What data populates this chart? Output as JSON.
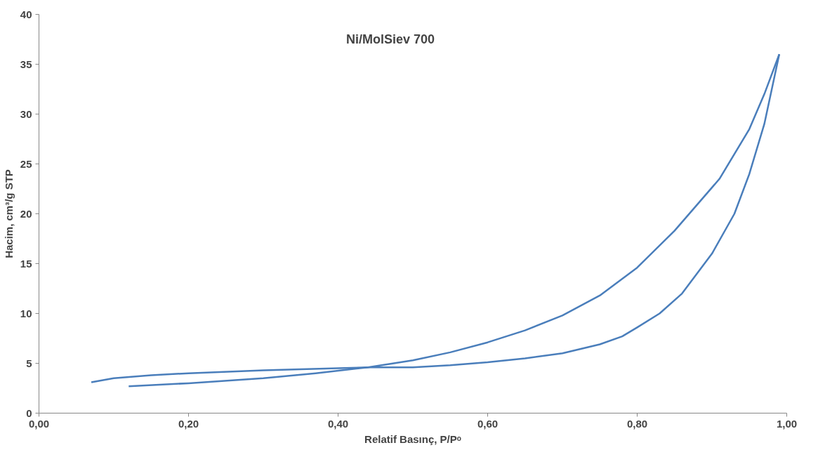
{
  "chart_data": {
    "type": "line",
    "title": "Ni/MolSiev 700",
    "xlabel": "Relatif Basınç, P/Pᵒ",
    "ylabel": "Hacim, cm³/g STP",
    "series": [
      {
        "color": "#4a7ebb",
        "x": [
          0.12,
          0.2,
          0.3,
          0.37,
          0.44,
          0.5,
          0.55,
          0.6,
          0.65,
          0.7,
          0.75,
          0.8,
          0.85,
          0.91,
          0.95,
          0.97,
          0.99
        ],
        "values": [
          2.7,
          3.0,
          3.5,
          4.0,
          4.6,
          5.3,
          6.1,
          7.1,
          8.3,
          9.8,
          11.8,
          14.6,
          18.3,
          23.5,
          28.5,
          32,
          36
        ]
      },
      {
        "color": "#4a7ebb",
        "x": [
          0.07,
          0.1,
          0.15,
          0.2,
          0.3,
          0.4,
          0.44,
          0.5,
          0.55,
          0.6,
          0.65,
          0.7,
          0.75,
          0.78,
          0.8,
          0.83,
          0.86,
          0.9,
          0.93,
          0.95,
          0.97,
          0.99
        ],
        "values": [
          3.1,
          3.5,
          3.8,
          4.0,
          4.3,
          4.5,
          4.6,
          4.6,
          4.8,
          5.1,
          5.5,
          6.0,
          6.9,
          7.7,
          8.6,
          10.0,
          12.0,
          16.0,
          20.0,
          24.0,
          29.0,
          36.0
        ]
      }
    ],
    "xlim": [
      0,
      1
    ],
    "ylim": [
      0,
      40
    ],
    "xticks": [
      {
        "value": 0,
        "label": "0,00"
      },
      {
        "value": 0.2,
        "label": "0,20"
      },
      {
        "value": 0.4,
        "label": "0,40"
      },
      {
        "value": 0.6,
        "label": "0,60"
      },
      {
        "value": 0.8,
        "label": "0,80"
      },
      {
        "value": 1,
        "label": "1,00"
      }
    ],
    "yticks": [
      0,
      5,
      10,
      15,
      20,
      25,
      30,
      35,
      40
    ],
    "grid": false,
    "marker": "none",
    "line_style": "solid"
  }
}
